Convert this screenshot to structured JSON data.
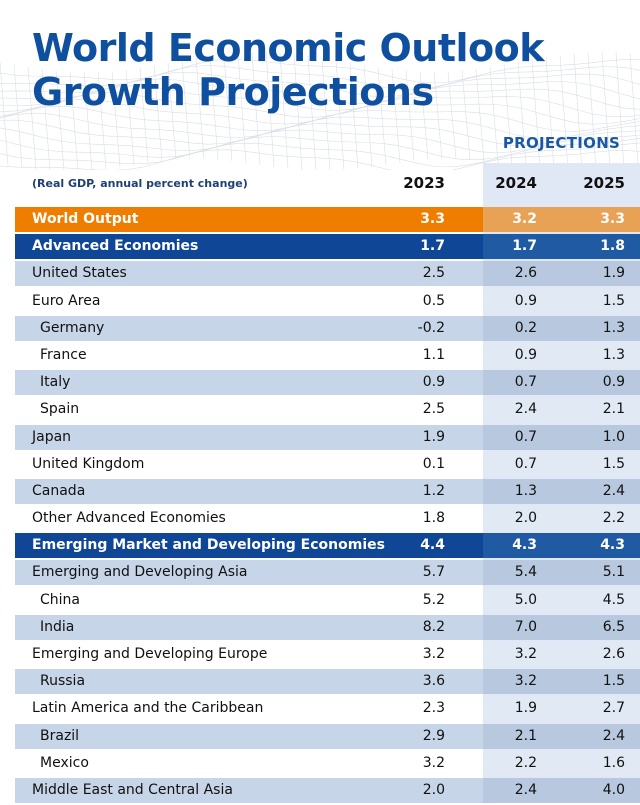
{
  "title_line1": "World Economic Outlook",
  "title_line2": "Growth Projections",
  "projections_label": "PROJECTIONS",
  "units_note": "(Real GDP, annual percent change)",
  "years": [
    "2023",
    "2024",
    "2025"
  ],
  "rows": [
    {
      "name": "World Output",
      "v": [
        "3.3",
        "3.2",
        "3.3"
      ],
      "style": "world",
      "indent": false
    },
    {
      "name": "Advanced Economies",
      "v": [
        "1.7",
        "1.7",
        "1.8"
      ],
      "style": "group",
      "indent": false
    },
    {
      "name": "United States",
      "v": [
        "2.5",
        "2.6",
        "1.9"
      ],
      "style": "shade",
      "indent": false
    },
    {
      "name": "Euro Area",
      "v": [
        "0.5",
        "0.9",
        "1.5"
      ],
      "style": "plain",
      "indent": false
    },
    {
      "name": "Germany",
      "v": [
        "-0.2",
        "0.2",
        "1.3"
      ],
      "style": "shade",
      "indent": true
    },
    {
      "name": "France",
      "v": [
        "1.1",
        "0.9",
        "1.3"
      ],
      "style": "plain",
      "indent": true
    },
    {
      "name": "Italy",
      "v": [
        "0.9",
        "0.7",
        "0.9"
      ],
      "style": "shade",
      "indent": true
    },
    {
      "name": "Spain",
      "v": [
        "2.5",
        "2.4",
        "2.1"
      ],
      "style": "plain",
      "indent": true
    },
    {
      "name": "Japan",
      "v": [
        "1.9",
        "0.7",
        "1.0"
      ],
      "style": "shade",
      "indent": false
    },
    {
      "name": "United Kingdom",
      "v": [
        "0.1",
        "0.7",
        "1.5"
      ],
      "style": "plain",
      "indent": false
    },
    {
      "name": "Canada",
      "v": [
        "1.2",
        "1.3",
        "2.4"
      ],
      "style": "shade",
      "indent": false
    },
    {
      "name": "Other Advanced Economies",
      "v": [
        "1.8",
        "2.0",
        "2.2"
      ],
      "style": "plain",
      "indent": false
    },
    {
      "name": "Emerging Market and Developing Economies",
      "v": [
        "4.4",
        "4.3",
        "4.3"
      ],
      "style": "group",
      "indent": false
    },
    {
      "name": "Emerging and Developing Asia",
      "v": [
        "5.7",
        "5.4",
        "5.1"
      ],
      "style": "shade",
      "indent": false
    },
    {
      "name": "China",
      "v": [
        "5.2",
        "5.0",
        "4.5"
      ],
      "style": "plain",
      "indent": true
    },
    {
      "name": "India",
      "v": [
        "8.2",
        "7.0",
        "6.5"
      ],
      "style": "shade",
      "indent": true
    },
    {
      "name": "Emerging and Developing Europe",
      "v": [
        "3.2",
        "3.2",
        "2.6"
      ],
      "style": "plain",
      "indent": false
    },
    {
      "name": "Russia",
      "v": [
        "3.6",
        "3.2",
        "1.5"
      ],
      "style": "shade",
      "indent": true
    },
    {
      "name": "Latin America and the Caribbean",
      "v": [
        "2.3",
        "1.9",
        "2.7"
      ],
      "style": "plain",
      "indent": false
    },
    {
      "name": "Brazil",
      "v": [
        "2.9",
        "2.1",
        "2.4"
      ],
      "style": "shade",
      "indent": true
    },
    {
      "name": "Mexico",
      "v": [
        "3.2",
        "2.2",
        "1.6"
      ],
      "style": "plain",
      "indent": true
    },
    {
      "name": "Middle East and Central Asia",
      "v": [
        "2.0",
        "2.4",
        "4.0"
      ],
      "style": "shade",
      "indent": false
    }
  ],
  "colors": {
    "title": "#0f4fa0",
    "world_row": "#ef7d00",
    "group_row": "#0f4696",
    "shade_row": "#c7d5e8",
    "projection_column": "#dfe8f4"
  }
}
